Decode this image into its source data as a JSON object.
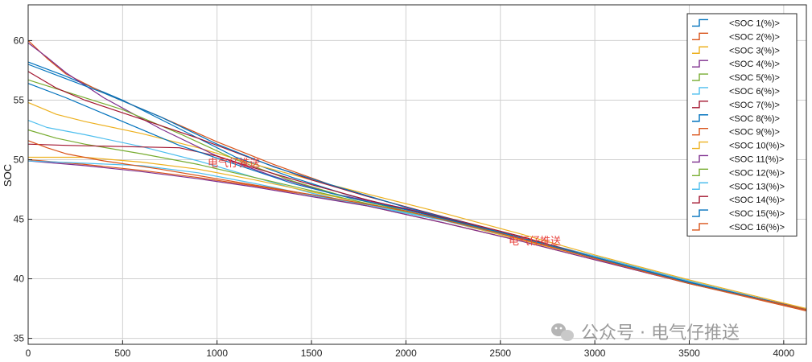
{
  "chart_data": {
    "type": "line",
    "title": "",
    "xlabel": "",
    "ylabel": "SOC",
    "xlim": [
      0,
      4120
    ],
    "ylim": [
      34.5,
      63
    ],
    "x_ticks": [
      0,
      500,
      1000,
      1500,
      2000,
      2500,
      3000,
      3500,
      4000
    ],
    "y_ticks": [
      35,
      40,
      45,
      50,
      55,
      60
    ],
    "grid": true,
    "legend_position": "top-right",
    "series": [
      {
        "name": "<SOC 1(%)>",
        "color": "#0072bd",
        "x": [
          0,
          200,
          500,
          800,
          1100,
          1400,
          1700,
          2000,
          2500,
          3000,
          3500,
          4120
        ],
        "y": [
          58.2,
          57.0,
          55.0,
          52.6,
          50.2,
          48.5,
          47.0,
          45.8,
          43.9,
          41.9,
          39.8,
          37.4
        ]
      },
      {
        "name": "<SOC 2(%)>",
        "color": "#d95319",
        "x": [
          0,
          100,
          200,
          400,
          700,
          1000,
          1300,
          1600,
          2000,
          2500,
          3000,
          3500,
          4120
        ],
        "y": [
          60.0,
          58.5,
          57.2,
          55.6,
          53.6,
          51.5,
          49.6,
          47.9,
          46.0,
          43.8,
          41.7,
          39.6,
          37.5
        ]
      },
      {
        "name": "<SOC 3(%)>",
        "color": "#edb120",
        "x": [
          0,
          150,
          300,
          600,
          900,
          1200,
          1500,
          1800,
          2200,
          2600,
          3000,
          3500,
          4120
        ],
        "y": [
          54.8,
          53.8,
          53.2,
          52.2,
          51.0,
          49.6,
          48.3,
          47.1,
          45.5,
          43.8,
          42.0,
          39.9,
          37.5
        ]
      },
      {
        "name": "<SOC 4(%)>",
        "color": "#7e2f8e",
        "x": [
          0,
          100,
          200,
          400,
          700,
          1000,
          1300,
          1600,
          2000,
          2500,
          3000,
          3500,
          4120
        ],
        "y": [
          59.8,
          58.6,
          57.3,
          55.2,
          52.6,
          50.3,
          48.6,
          47.2,
          45.9,
          43.9,
          41.8,
          39.7,
          37.4
        ]
      },
      {
        "name": "<SOC 5(%)>",
        "color": "#77ac30",
        "x": [
          0,
          200,
          500,
          800,
          1100,
          1400,
          1700,
          2000,
          2500,
          3000,
          3500,
          4120
        ],
        "y": [
          56.7,
          55.7,
          54.2,
          52.2,
          50.0,
          48.2,
          46.8,
          45.7,
          43.8,
          41.8,
          39.7,
          37.4
        ]
      },
      {
        "name": "<SOC 6(%)>",
        "color": "#4dbeee",
        "x": [
          0,
          100,
          300,
          600,
          900,
          1200,
          1500,
          1800,
          2200,
          2600,
          3000,
          3500,
          4120
        ],
        "y": [
          53.3,
          52.7,
          52.1,
          51.1,
          49.9,
          48.5,
          47.2,
          46.1,
          44.9,
          43.5,
          41.9,
          39.8,
          37.4
        ]
      },
      {
        "name": "<SOC 7(%)>",
        "color": "#a2142f",
        "x": [
          0,
          150,
          300,
          600,
          900,
          1200,
          1500,
          1800,
          2200,
          2600,
          3000,
          3500,
          4120
        ],
        "y": [
          57.4,
          56.0,
          55.0,
          53.4,
          51.8,
          50.0,
          48.3,
          46.9,
          45.2,
          43.6,
          41.8,
          39.7,
          37.4
        ]
      },
      {
        "name": "<SOC 8(%)>",
        "color": "#0072bd",
        "x": [
          0,
          200,
          400,
          700,
          1000,
          1300,
          1600,
          2000,
          2500,
          3000,
          3500,
          4120
        ],
        "y": [
          58.0,
          56.8,
          55.6,
          53.6,
          51.3,
          49.4,
          47.9,
          46.0,
          43.9,
          41.8,
          39.7,
          37.4
        ]
      },
      {
        "name": "<SOC 9(%)>",
        "color": "#d95319",
        "x": [
          0,
          300,
          600,
          900,
          1200,
          1500,
          1800,
          2200,
          2600,
          3000,
          3500,
          4120
        ],
        "y": [
          50.0,
          49.6,
          49.1,
          48.5,
          47.8,
          47.0,
          46.1,
          44.7,
          43.2,
          41.6,
          39.6,
          37.3
        ]
      },
      {
        "name": "<SOC 10(%)>",
        "color": "#edb120",
        "x": [
          0,
          300,
          600,
          900,
          1200,
          1500,
          1800,
          2200,
          2600,
          3000,
          3500,
          4120
        ],
        "y": [
          50.2,
          50.2,
          49.8,
          49.2,
          48.3,
          47.3,
          46.3,
          44.9,
          43.3,
          41.7,
          39.6,
          37.4
        ]
      },
      {
        "name": "<SOC 11(%)>",
        "color": "#7e2f8e",
        "x": [
          0,
          300,
          600,
          900,
          1200,
          1500,
          1800,
          2200,
          2600,
          3000,
          3500,
          4120
        ],
        "y": [
          49.9,
          49.5,
          49.0,
          48.4,
          47.7,
          46.9,
          46.1,
          44.7,
          43.2,
          41.6,
          39.6,
          37.4
        ]
      },
      {
        "name": "<SOC 12(%)>",
        "color": "#77ac30",
        "x": [
          0,
          150,
          300,
          600,
          900,
          1200,
          1500,
          1800,
          2200,
          2600,
          3000,
          3500,
          4120
        ],
        "y": [
          52.5,
          51.8,
          51.3,
          50.5,
          49.6,
          48.5,
          47.4,
          46.3,
          45.0,
          43.5,
          41.8,
          39.7,
          37.4
        ]
      },
      {
        "name": "<SOC 13(%)>",
        "color": "#4dbeee",
        "x": [
          0,
          300,
          600,
          900,
          1200,
          1500,
          1800,
          2200,
          2600,
          3000,
          3500,
          4120
        ],
        "y": [
          49.9,
          49.7,
          49.5,
          48.9,
          48.0,
          47.0,
          46.2,
          44.9,
          43.4,
          41.7,
          39.6,
          37.4
        ]
      },
      {
        "name": "<SOC 14(%)>",
        "color": "#a2142f",
        "x": [
          0,
          200,
          500,
          800,
          1000,
          1200,
          1500,
          1800,
          2200,
          2600,
          3000,
          3500,
          4120
        ],
        "y": [
          51.3,
          51.2,
          51.1,
          51.0,
          50.3,
          49.3,
          47.9,
          46.6,
          45.1,
          43.5,
          41.8,
          39.7,
          37.4
        ]
      },
      {
        "name": "<SOC 15(%)>",
        "color": "#0072bd",
        "x": [
          0,
          200,
          500,
          800,
          1100,
          1400,
          1700,
          2000,
          2500,
          3000,
          3500,
          4120
        ],
        "y": [
          56.4,
          55.2,
          53.2,
          51.2,
          49.6,
          48.0,
          46.8,
          45.8,
          43.9,
          41.8,
          39.7,
          37.4
        ]
      },
      {
        "name": "<SOC 16(%)>",
        "color": "#d95319",
        "x": [
          0,
          50,
          100,
          200,
          400,
          700,
          1000,
          1300,
          1600,
          2000,
          2500,
          3000,
          3500,
          4120
        ],
        "y": [
          51.6,
          51.3,
          51.0,
          50.5,
          49.9,
          49.2,
          48.4,
          47.6,
          46.8,
          45.7,
          43.8,
          41.7,
          39.6,
          37.4
        ]
      }
    ]
  },
  "watermarks": {
    "overlay_text_1": "电气仔推送",
    "overlay_text_2": "电气仔推送",
    "footer": "公众号 · 电气仔推送",
    "footer_icon": "wechat-icon"
  }
}
